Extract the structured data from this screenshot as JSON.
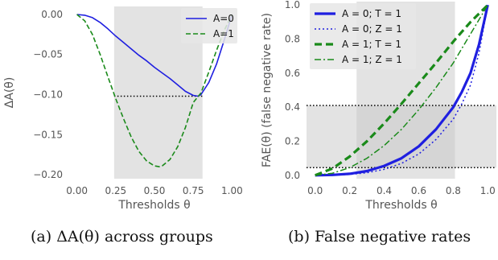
{
  "captions": {
    "a": "(a) ΔA(θ) across groups",
    "b": "(b) False negative rates"
  },
  "chart_data": [
    {
      "type": "line",
      "xlabel": "Thresholds θ",
      "ylabel": "ΔA(θ)",
      "xlim": [
        -0.05,
        1.05
      ],
      "ylim": [
        -0.205,
        0.01
      ],
      "xticks": [
        "0.00",
        "0.25",
        "0.50",
        "0.75",
        "1.00"
      ],
      "xtick_values": [
        0,
        0.25,
        0.5,
        0.75,
        1.0
      ],
      "yticks": [
        "0.00",
        "−0.05",
        "−0.10",
        "−0.15",
        "−0.20"
      ],
      "ytick_values": [
        0,
        -0.05,
        -0.1,
        -0.15,
        -0.2
      ],
      "grid": false,
      "shaded_x": [
        0.24,
        0.81
      ],
      "hlines": [
        {
          "y": -0.102,
          "x": [
            0.24,
            0.81
          ],
          "style": "dotted",
          "color": "#000000"
        }
      ],
      "legend": "top-right",
      "series": [
        {
          "name": "A=0",
          "color": "#1f1fe0",
          "style": "solid",
          "x": [
            0,
            0.05,
            0.1,
            0.15,
            0.2,
            0.25,
            0.3,
            0.35,
            0.4,
            0.45,
            0.5,
            0.55,
            0.6,
            0.65,
            0.7,
            0.75,
            0.78,
            0.8,
            0.85,
            0.9,
            0.95,
            1.0
          ],
          "y": [
            0,
            -0.001,
            -0.004,
            -0.01,
            -0.018,
            -0.027,
            -0.035,
            -0.043,
            -0.051,
            -0.058,
            -0.066,
            -0.073,
            -0.08,
            -0.088,
            -0.096,
            -0.101,
            -0.102,
            -0.1,
            -0.085,
            -0.062,
            -0.032,
            0
          ]
        },
        {
          "name": "A=1",
          "color": "#1a8a1a",
          "style": "dashed",
          "x": [
            0,
            0.05,
            0.1,
            0.15,
            0.2,
            0.25,
            0.3,
            0.35,
            0.4,
            0.45,
            0.5,
            0.53,
            0.55,
            0.6,
            0.65,
            0.7,
            0.75,
            0.8,
            0.85,
            0.9,
            0.95,
            1.0
          ],
          "y": [
            0,
            -0.008,
            -0.025,
            -0.05,
            -0.078,
            -0.105,
            -0.13,
            -0.153,
            -0.171,
            -0.183,
            -0.189,
            -0.19,
            -0.189,
            -0.181,
            -0.165,
            -0.141,
            -0.11,
            -0.098,
            -0.072,
            -0.045,
            -0.02,
            0
          ]
        }
      ]
    },
    {
      "type": "line",
      "xlabel": "Thresholds θ",
      "ylabel": "FAE(θ)    (false negative rate)",
      "xlim": [
        -0.05,
        1.05
      ],
      "ylim": [
        -0.02,
        1.02
      ],
      "xticks": [
        "0.0",
        "0.2",
        "0.4",
        "0.6",
        "0.8",
        "1.0"
      ],
      "xtick_values": [
        0,
        0.2,
        0.4,
        0.6,
        0.8,
        1.0
      ],
      "yticks": [
        "0.0",
        "0.2",
        "0.4",
        "0.6",
        "0.8",
        "1.0"
      ],
      "ytick_values": [
        0,
        0.2,
        0.4,
        0.6,
        0.8,
        1.0
      ],
      "grid": false,
      "shaded_x": [
        0.24,
        0.81
      ],
      "shaded_y": [
        0.045,
        0.41
      ],
      "hlines": [
        {
          "y": 0.41,
          "x": [
            -0.05,
            1.05
          ],
          "style": "dotted",
          "color": "#000000"
        },
        {
          "y": 0.045,
          "x": [
            -0.05,
            1.05
          ],
          "style": "dotted",
          "color": "#000000"
        }
      ],
      "legend": "top-left",
      "series": [
        {
          "name": "A = 0; T = 1",
          "color": "#1f1fe0",
          "style": "solid-thick",
          "x": [
            0,
            0.1,
            0.2,
            0.3,
            0.4,
            0.5,
            0.6,
            0.7,
            0.8,
            0.85,
            0.9,
            0.95,
            1.0
          ],
          "y": [
            0,
            0.002,
            0.009,
            0.025,
            0.055,
            0.1,
            0.17,
            0.27,
            0.4,
            0.49,
            0.6,
            0.77,
            1.0
          ]
        },
        {
          "name": "A = 0; Z = 1",
          "color": "#1f1fe0",
          "style": "dotted",
          "x": [
            0,
            0.1,
            0.2,
            0.3,
            0.4,
            0.5,
            0.6,
            0.7,
            0.8,
            0.85,
            0.9,
            0.95,
            1.0
          ],
          "y": [
            0,
            0.001,
            0.005,
            0.015,
            0.035,
            0.07,
            0.125,
            0.21,
            0.33,
            0.42,
            0.53,
            0.72,
            1.0
          ]
        },
        {
          "name": "A = 1; T = 1",
          "color": "#1a8a1a",
          "style": "dashed-thick",
          "x": [
            0,
            0.1,
            0.2,
            0.3,
            0.4,
            0.5,
            0.6,
            0.7,
            0.8,
            0.9,
            1.0
          ],
          "y": [
            0,
            0.04,
            0.11,
            0.2,
            0.305,
            0.42,
            0.54,
            0.66,
            0.785,
            0.9,
            1.0
          ]
        },
        {
          "name": "A = 1; Z = 1",
          "color": "#1a8a1a",
          "style": "dashdot",
          "x": [
            0,
            0.1,
            0.2,
            0.3,
            0.4,
            0.5,
            0.6,
            0.7,
            0.8,
            0.9,
            1.0
          ],
          "y": [
            0,
            0.012,
            0.045,
            0.1,
            0.175,
            0.27,
            0.385,
            0.515,
            0.66,
            0.83,
            1.0
          ]
        }
      ]
    }
  ]
}
